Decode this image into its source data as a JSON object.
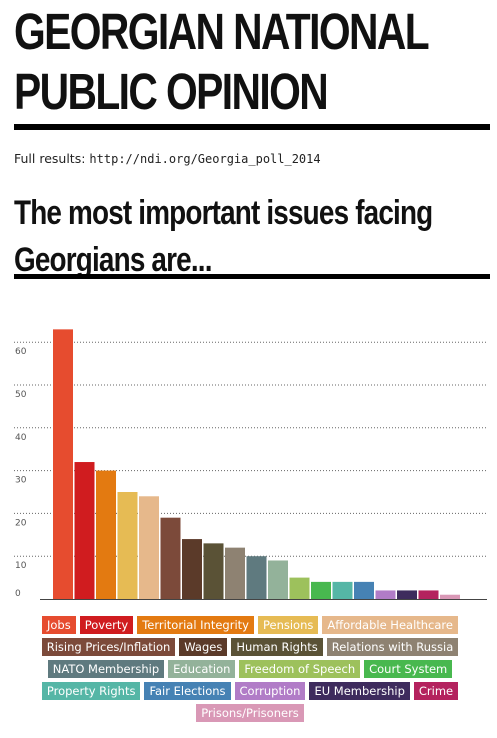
{
  "header": {
    "title_line1": "GEORGIAN NATIONAL",
    "title_line2": "PUBLIC OPINION",
    "results_label": "Full results: ",
    "results_url": "http://ndi.org/Georgia_poll_2014",
    "section_line1": "The most important issues facing",
    "section_line2": "Georgians are..."
  },
  "chart_data": {
    "type": "bar",
    "ylim": [
      0,
      60
    ],
    "yticks": [
      0,
      10,
      20,
      30,
      40,
      50,
      60
    ],
    "grid": true,
    "legend": "bottom",
    "categories": [
      "Jobs",
      "Poverty",
      "Territorial Integrity",
      "Pensions",
      "Affordable Healthcare",
      "Rising Prices/Inflation",
      "Wages",
      "Human Rights",
      "Relations with Russia",
      "NATO Membership",
      "Education",
      "Freedom of Speech",
      "Court System",
      "Property Rights",
      "Fair Elections",
      "Corruption",
      "EU Membership",
      "Crime",
      "Prisons/Prisoners"
    ],
    "values": [
      63,
      32,
      30,
      25,
      24,
      19,
      14,
      13,
      12,
      10,
      9,
      5,
      4,
      4,
      4,
      2,
      2,
      2,
      1
    ],
    "colors": [
      "#e64c2f",
      "#d01c1f",
      "#e37a11",
      "#e6bb54",
      "#e6b88b",
      "#7c4a3a",
      "#5b3a29",
      "#5a5236",
      "#8e8272",
      "#5f7a7f",
      "#93b29a",
      "#9dc15c",
      "#48b84f",
      "#55b6a6",
      "#4682b4",
      "#b17cc7",
      "#3e2b5d",
      "#b4225e",
      "#d998b6"
    ]
  }
}
